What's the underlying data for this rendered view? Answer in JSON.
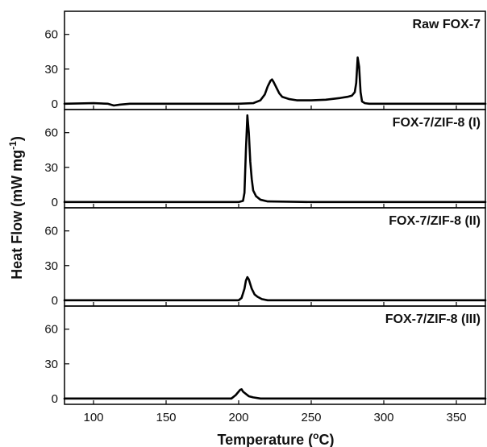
{
  "chart_data": {
    "type": "line",
    "layout": "stacked-panels",
    "shared_x": true,
    "xlabel": "Temperature (",
    "xlabel_sup": "o",
    "xlabel_end": "C)",
    "ylabel": "Heat Flow (mW mg",
    "ylabel_sup": "-1",
    "ylabel_end": ")",
    "xlim": [
      80,
      370
    ],
    "xticks": [
      100,
      150,
      200,
      250,
      300,
      350
    ],
    "line_color": "#000000",
    "grid": false,
    "panels": [
      {
        "title": "Raw FOX-7",
        "ylim": [
          -5,
          80
        ],
        "yticks": [
          0,
          30,
          60
        ],
        "series": [
          {
            "x": [
              80,
              100,
              110,
              114,
              118,
              125,
              150,
              180,
              200,
              210,
              215,
              218,
              220,
              222,
              223,
              224,
              226,
              228,
              230,
              235,
              240,
              250,
              260,
              270,
              275,
              278,
              280,
              281,
              282,
              283,
              284,
              285,
              287,
              290,
              300,
              330,
              370
            ],
            "y": [
              0,
              0.5,
              0,
              -1.5,
              -0.8,
              0,
              0,
              0,
              0,
              0.5,
              3,
              8,
              15,
              20,
              21,
              19,
              14,
              9,
              6,
              4,
              3,
              3,
              3.5,
              5,
              6,
              7,
              10,
              18,
              40,
              32,
              10,
              2,
              0.5,
              0,
              0,
              0,
              0
            ]
          }
        ]
      },
      {
        "title": "FOX-7/ZIF-8 (I)",
        "ylim": [
          -5,
          80
        ],
        "yticks": [
          0,
          30,
          60
        ],
        "series": [
          {
            "x": [
              80,
              150,
              200,
              203,
              204,
              205,
              206,
              207,
              208,
              209,
              210,
              212,
              215,
              220,
              250,
              370
            ],
            "y": [
              0,
              0,
              0,
              1,
              8,
              45,
              75,
              60,
              35,
              20,
              10,
              5,
              2,
              0.5,
              0,
              0
            ]
          }
        ]
      },
      {
        "title": "FOX-7/ZIF-8 (II)",
        "ylim": [
          -5,
          80
        ],
        "yticks": [
          0,
          30,
          60
        ],
        "series": [
          {
            "x": [
              80,
              150,
              200,
              202,
              204,
              205,
              206,
              207,
              208,
              209,
              211,
              213,
              216,
              220,
              250,
              370
            ],
            "y": [
              0,
              0,
              0,
              2,
              10,
              17,
              20,
              18,
              14,
              10,
              5,
              3,
              1,
              0,
              0,
              0
            ]
          }
        ]
      },
      {
        "title": "FOX-7/ZIF-8 (III)",
        "ylim": [
          -5,
          80
        ],
        "yticks": [
          0,
          30,
          60
        ],
        "series": [
          {
            "x": [
              80,
              150,
              195,
              198,
              200,
              201,
              202,
              203,
              205,
              207,
              210,
              215,
              250,
              370
            ],
            "y": [
              0,
              0,
              0,
              3,
              6,
              7.5,
              8,
              6,
              4,
              2,
              1,
              0,
              0,
              0
            ]
          }
        ]
      }
    ]
  }
}
